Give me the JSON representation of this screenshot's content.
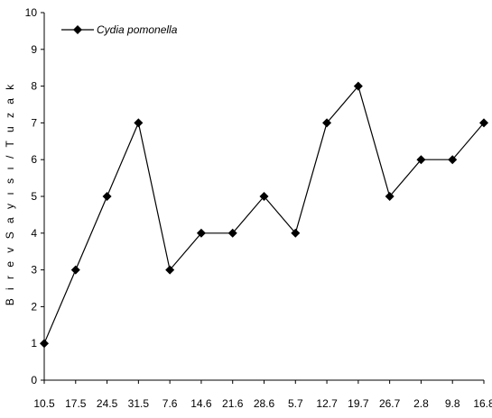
{
  "chart_data": {
    "type": "line",
    "title": "",
    "xlabel": "",
    "ylabel": "B i r e v  S a y ı s ı / T u z a k",
    "categories": [
      "10.5",
      "17.5",
      "24.5",
      "31.5",
      "7.6",
      "14.6",
      "21.6",
      "28.6",
      "5.7",
      "12.7",
      "19.7",
      "26.7",
      "2.8",
      "9.8",
      "16.8"
    ],
    "series": [
      {
        "name": "Cydia pomonella",
        "values": [
          1,
          3,
          5,
          7,
          3,
          4,
          4,
          5,
          4,
          7,
          8,
          5,
          6,
          6,
          7
        ]
      }
    ],
    "ylim": [
      0,
      10
    ],
    "yticks": [
      "0",
      "1",
      "2",
      "3",
      "4",
      "5",
      "6",
      "7",
      "8",
      "9",
      "10"
    ],
    "grid": false,
    "legend_position": "top-left",
    "line_color": "#000000",
    "marker": "diamond"
  }
}
